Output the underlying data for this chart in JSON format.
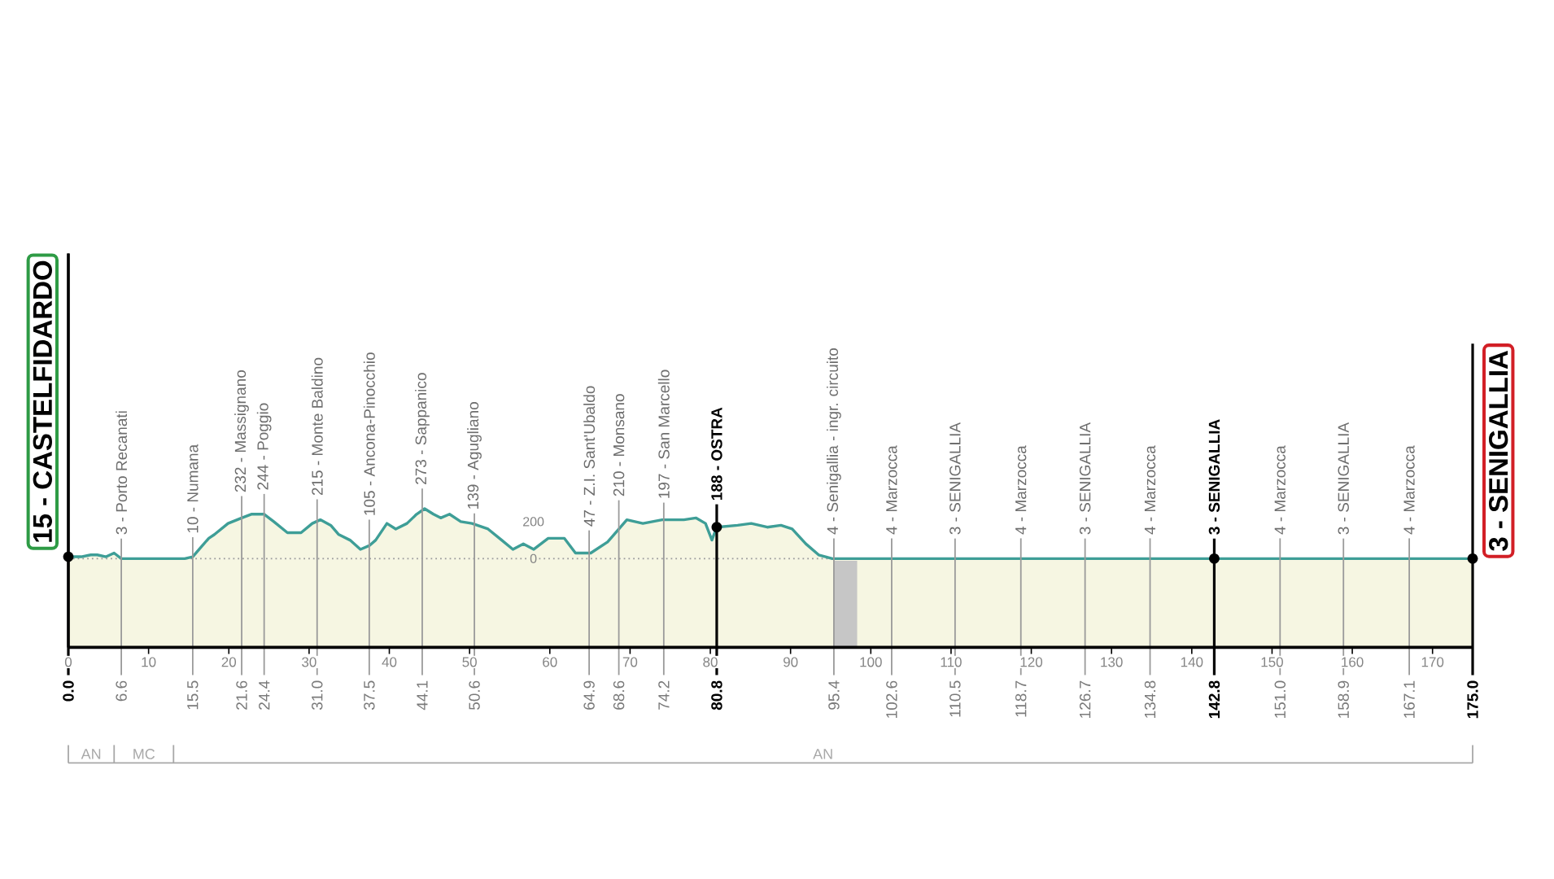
{
  "chart_data": {
    "type": "area",
    "series": [
      {
        "color": "#3e9e97",
        "x": [
          0,
          1.6,
          2.8,
          3.6,
          4.7,
          5.7,
          6.6,
          10,
          14.5,
          15.5,
          16.5,
          17.5,
          18.2,
          19.9,
          21.6,
          22.8,
          24.4,
          25.6,
          27.3,
          29.0,
          30.4,
          31.4,
          32.7,
          33.7,
          35.1,
          36.4,
          37.5,
          38.3,
          39.7,
          40.8,
          42.2,
          43.4,
          44.4,
          45.5,
          46.4,
          47.5,
          48.9,
          50.3,
          52.3,
          54.0,
          55.4,
          56.7,
          58.0,
          59.8,
          61.8,
          63.2,
          65.1,
          67.2,
          69.6,
          71.6,
          74.0,
          76.7,
          78.2,
          79.4,
          80.2,
          80.8,
          83.4,
          85.1,
          87.1,
          88.8,
          90.2,
          91.9,
          93.5,
          95.2,
          100,
          110,
          120,
          130,
          140,
          150,
          160,
          170,
          175
        ],
        "values": [
          10,
          10,
          20,
          20,
          10,
          30,
          0,
          0,
          0,
          10,
          60,
          110,
          130,
          190,
          220,
          240,
          240,
          200,
          140,
          140,
          190,
          210,
          180,
          130,
          100,
          50,
          70,
          100,
          190,
          160,
          190,
          240,
          270,
          240,
          220,
          240,
          200,
          190,
          160,
          100,
          50,
          80,
          50,
          110,
          110,
          30,
          30,
          90,
          210,
          190,
          210,
          210,
          220,
          190,
          100,
          170,
          180,
          190,
          170,
          180,
          160,
          80,
          20,
          0,
          0,
          0,
          0,
          0,
          0,
          0,
          0,
          0,
          0
        ]
      }
    ],
    "xlim": [
      0,
      175
    ],
    "ylim": [
      -480,
      1650
    ],
    "xticks": [
      0,
      10,
      20,
      30,
      40,
      50,
      60,
      70,
      80,
      90,
      100,
      110,
      120,
      130,
      140,
      150,
      160,
      170
    ],
    "yticks": [
      0,
      200
    ],
    "annotations": [
      {
        "text": "15 - CASTELFIDARDO",
        "x": 0,
        "y": 15
      },
      {
        "text": "3 - Porto Recanati",
        "x": 6.6,
        "y": 3
      },
      {
        "text": "10 - Numana",
        "x": 15.5,
        "y": 10
      },
      {
        "text": "232 - Massignano",
        "x": 21.6,
        "y": 232
      },
      {
        "text": "244 - Poggio",
        "x": 24.4,
        "y": 244
      },
      {
        "text": "215 - Monte Baldino",
        "x": 31.0,
        "y": 215
      },
      {
        "text": "105 - Ancona-Pinocchio",
        "x": 37.5,
        "y": 105
      },
      {
        "text": "273 - Sappanico",
        "x": 44.1,
        "y": 273
      },
      {
        "text": "139 - Agugliano",
        "x": 50.6,
        "y": 139
      },
      {
        "text": "47 - Z.I. Sant'Ubaldo",
        "x": 64.9,
        "y": 47
      },
      {
        "text": "210 - Monsano",
        "x": 68.6,
        "y": 210
      },
      {
        "text": "197 - San Marcello",
        "x": 74.2,
        "y": 197
      },
      {
        "text": "188 - OSTRA",
        "x": 80.8,
        "y": 188
      },
      {
        "text": "4 - Senigallia - ingr. circuito",
        "x": 95.4,
        "y": 4
      },
      {
        "text": "4 - Marzocca",
        "x": 102.6,
        "y": 4
      },
      {
        "text": "3 - SENIGALLIA",
        "x": 110.5,
        "y": 3
      },
      {
        "text": "4 - Marzocca",
        "x": 118.7,
        "y": 4
      },
      {
        "text": "3 - SENIGALLIA",
        "x": 126.7,
        "y": 3
      },
      {
        "text": "4 - Marzocca",
        "x": 134.8,
        "y": 4
      },
      {
        "text": "3 - SENIGALLIA",
        "x": 142.8,
        "y": 3
      },
      {
        "text": "4 - Marzocca",
        "x": 151.0,
        "y": 4
      },
      {
        "text": "3 - SENIGALLIA",
        "x": 158.9,
        "y": 3
      },
      {
        "text": "4 - Marzocca",
        "x": 167.1,
        "y": 4
      },
      {
        "text": "3 - SENIGALLIA",
        "x": 175,
        "y": 3
      },
      "AN",
      "MC",
      "AN"
    ],
    "ref_lines": [
      {
        "axis": "y",
        "value": 0,
        "color": "#9a9a9a",
        "line_style": "dotted"
      },
      {
        "axis": "x",
        "value": 0,
        "label": "0.0",
        "color": "#000000"
      },
      {
        "axis": "x",
        "value": 6.6,
        "label": "6.6",
        "color": "#9a9a9a"
      },
      {
        "axis": "x",
        "value": 15.5,
        "label": "15.5",
        "color": "#9a9a9a"
      },
      {
        "axis": "x",
        "value": 21.6,
        "label": "21.6",
        "color": "#9a9a9a"
      },
      {
        "axis": "x",
        "value": 24.4,
        "label": "24.4",
        "color": "#9a9a9a"
      },
      {
        "axis": "x",
        "value": 31.0,
        "label": "31.0",
        "color": "#9a9a9a"
      },
      {
        "axis": "x",
        "value": 37.5,
        "label": "37.5",
        "color": "#9a9a9a"
      },
      {
        "axis": "x",
        "value": 44.1,
        "label": "44.1",
        "color": "#9a9a9a"
      },
      {
        "axis": "x",
        "value": 50.6,
        "label": "50.6",
        "color": "#9a9a9a"
      },
      {
        "axis": "x",
        "value": 64.9,
        "label": "64.9",
        "color": "#9a9a9a"
      },
      {
        "axis": "x",
        "value": 68.6,
        "label": "68.6",
        "color": "#9a9a9a"
      },
      {
        "axis": "x",
        "value": 74.2,
        "label": "74.2",
        "color": "#9a9a9a"
      },
      {
        "axis": "x",
        "value": 80.8,
        "label": "80.8",
        "color": "#000000"
      },
      {
        "axis": "x",
        "value": 95.4,
        "label": "95.4",
        "color": "#9a9a9a"
      },
      {
        "axis": "x",
        "value": 102.6,
        "label": "102.6",
        "color": "#9a9a9a"
      },
      {
        "axis": "x",
        "value": 110.5,
        "label": "110.5",
        "color": "#9a9a9a"
      },
      {
        "axis": "x",
        "value": 118.7,
        "label": "118.7",
        "color": "#9a9a9a"
      },
      {
        "axis": "x",
        "value": 126.7,
        "label": "126.7",
        "color": "#9a9a9a"
      },
      {
        "axis": "x",
        "value": 134.8,
        "label": "134.8",
        "color": "#9a9a9a"
      },
      {
        "axis": "x",
        "value": 142.8,
        "label": "142.8",
        "color": "#000000"
      },
      {
        "axis": "x",
        "value": 151.0,
        "label": "151.0",
        "color": "#9a9a9a"
      },
      {
        "axis": "x",
        "value": 158.9,
        "label": "158.9",
        "color": "#9a9a9a"
      },
      {
        "axis": "x",
        "value": 167.1,
        "label": "167.1",
        "color": "#9a9a9a"
      },
      {
        "axis": "x",
        "value": 175,
        "label": "175.0",
        "color": "#000000"
      }
    ],
    "bands": [
      {
        "axis": "y",
        "from": -480,
        "to": 0,
        "color": "#f6f6e2"
      },
      {
        "axis": "x",
        "from": 95.4,
        "to": 98.3,
        "color": "#c6c6c6"
      }
    ]
  }
}
